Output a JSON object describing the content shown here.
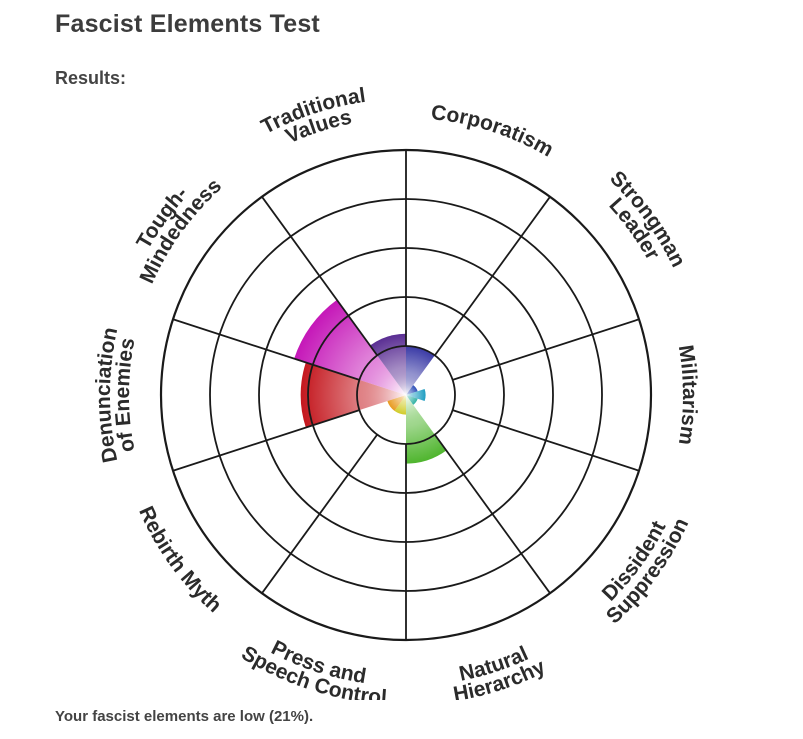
{
  "page": {
    "title": "Fascist Elements Test",
    "results_label": "Results:",
    "summary": "Your fascist elements are low (21%)."
  },
  "chart_data": {
    "type": "polar-area",
    "scale_max": 100,
    "rings": 5,
    "grid": true,
    "categories": [
      {
        "label": "Corporatism",
        "lines": [
          "Corporatism"
        ],
        "value": 20,
        "color": "#3a3aa6"
      },
      {
        "label": "Strongman Leader",
        "lines": [
          "Strongman",
          "Leader"
        ],
        "value": 5,
        "color": "#2e4fb8"
      },
      {
        "label": "Militarism",
        "lines": [
          "Militarism"
        ],
        "value": 8,
        "color": "#1f9ec2"
      },
      {
        "label": "Dissident Suppression",
        "lines": [
          "Dissident",
          "Suppression"
        ],
        "value": 5,
        "color": "#30b1a3"
      },
      {
        "label": "Natural Hierarchy",
        "lines": [
          "Natural",
          "Hierarchy"
        ],
        "value": 28,
        "color": "#4fb52e"
      },
      {
        "label": "Press and Speech Control",
        "lines": [
          "Press and",
          "Speech Control"
        ],
        "value": 8,
        "color": "#d1cc2a"
      },
      {
        "label": "Rebirth Myth",
        "lines": [
          "Rebirth Myth"
        ],
        "value": 8,
        "color": "#e89a1f"
      },
      {
        "label": "Denunciation of Enemies",
        "lines": [
          "Denunciation",
          "of Enemies"
        ],
        "value": 43,
        "color": "#c4171e"
      },
      {
        "label": "Tough-Mindedness",
        "lines": [
          "Tough-",
          "Mindedness"
        ],
        "value": 48,
        "color": "#c517b8"
      },
      {
        "label": "Traditional Values",
        "lines": [
          "Traditional",
          "Values"
        ],
        "value": 25,
        "color": "#5a2e93"
      }
    ]
  }
}
